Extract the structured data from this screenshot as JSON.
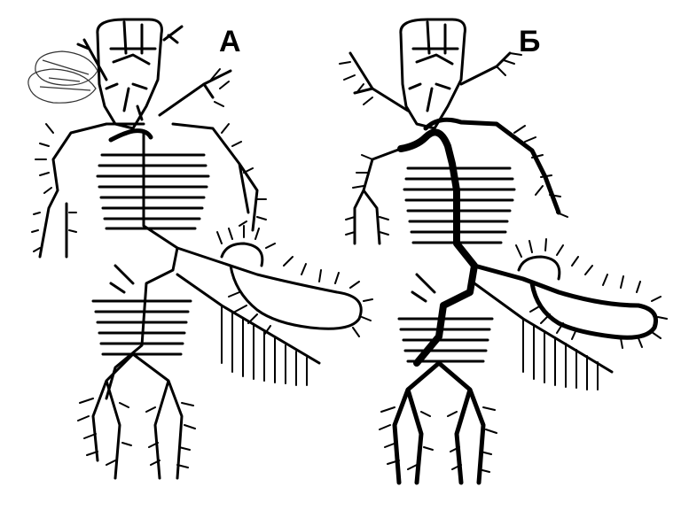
{
  "panels": [
    {
      "id": "A",
      "label": "А"
    },
    {
      "id": "B",
      "label": "Б"
    }
  ]
}
